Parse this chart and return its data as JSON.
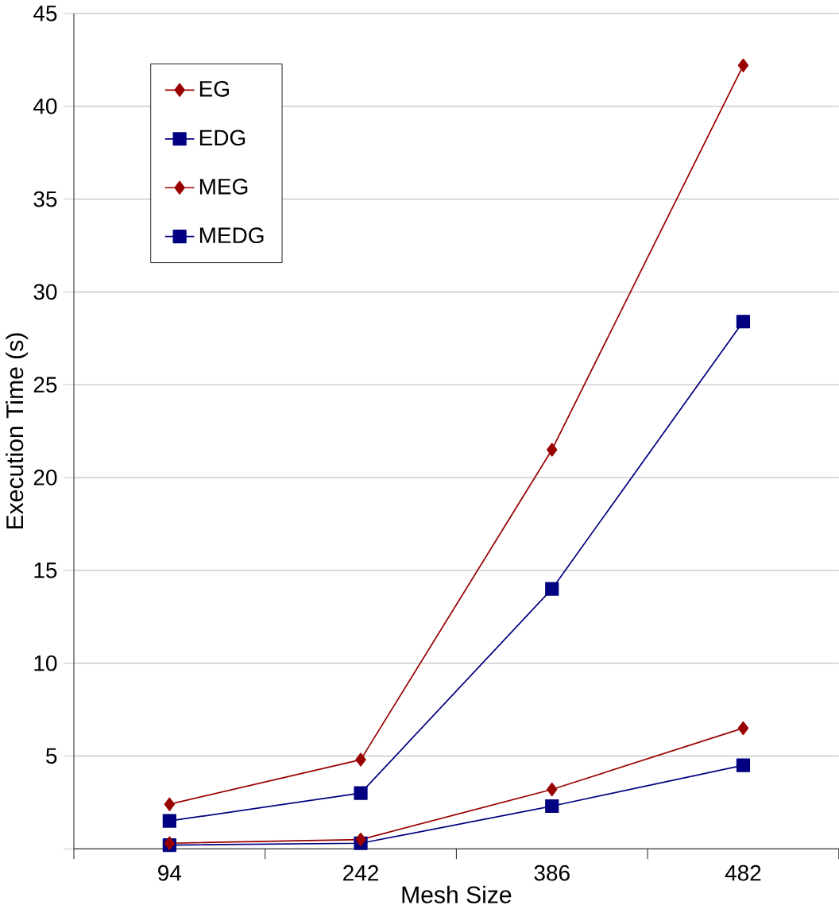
{
  "chart_data": {
    "type": "line",
    "xlabel": "Mesh Size",
    "ylabel": "Execution Time (s)",
    "categories": [
      "94",
      "242",
      "386",
      "482"
    ],
    "series": [
      {
        "name": "EG",
        "color": "#990000",
        "marker": "diamond",
        "values": [
          2.4,
          4.8,
          21.5,
          42.2
        ]
      },
      {
        "name": "EDG",
        "color": "#000080",
        "marker": "square",
        "values": [
          1.5,
          3.0,
          14.0,
          28.4
        ]
      },
      {
        "name": "MEG",
        "color": "#990000",
        "marker": "diamond",
        "values": [
          0.3,
          0.5,
          3.2,
          6.5
        ]
      },
      {
        "name": "MEDG",
        "color": "#000080",
        "marker": "square",
        "values": [
          0.2,
          0.3,
          2.3,
          4.5
        ]
      }
    ],
    "ylim": [
      0,
      45
    ],
    "yticks": [
      {
        "value": 0,
        "label": null
      },
      5,
      10,
      15,
      20,
      25,
      30,
      35,
      40,
      45
    ],
    "grid": "y",
    "legend": "top left"
  }
}
